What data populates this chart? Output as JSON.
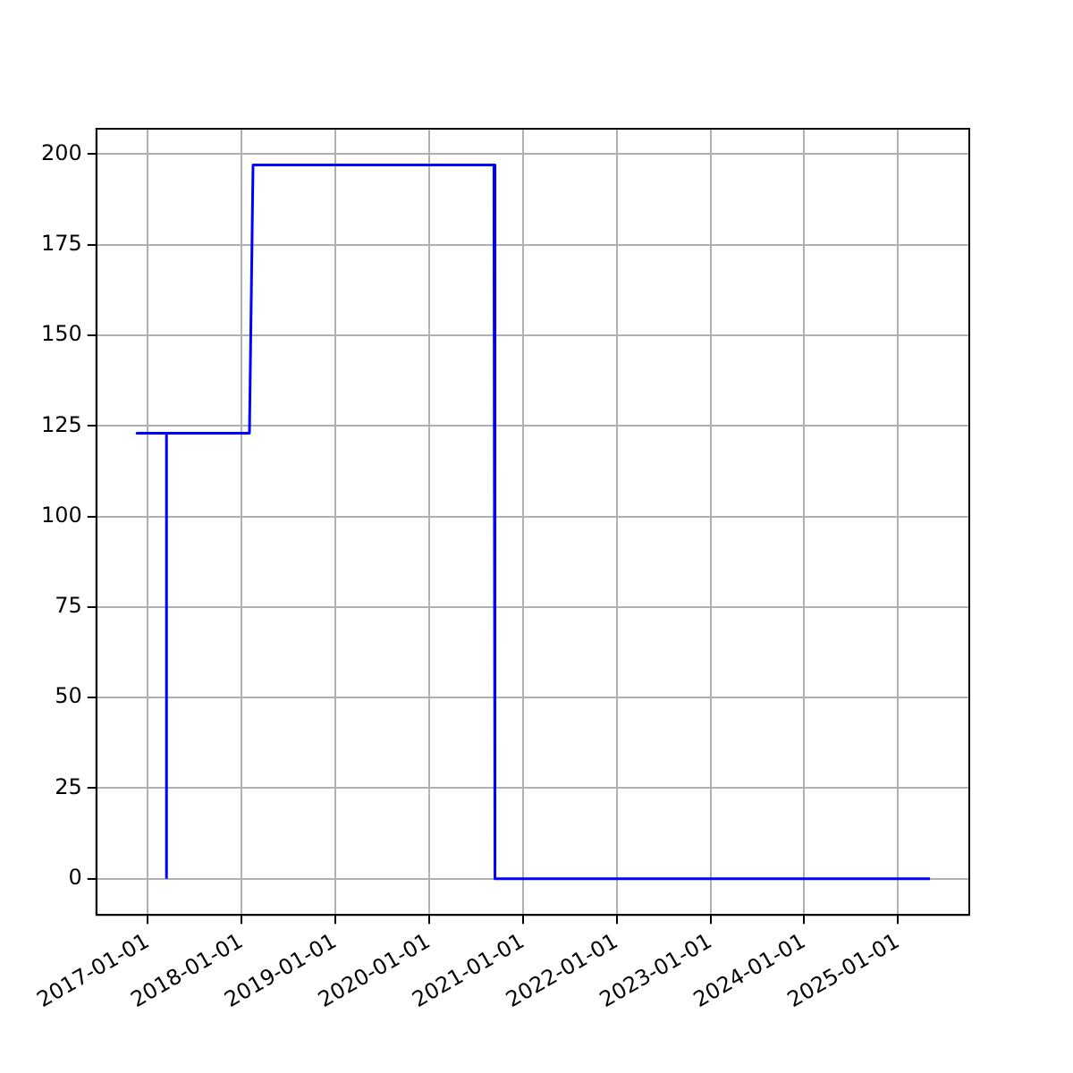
{
  "chart_data": {
    "type": "line",
    "x": [
      "2017-03-15",
      "2017-03-15",
      "2016-11-20",
      "2018-02-01",
      "2018-02-15",
      "2020-09-10",
      "2020-09-14",
      "2025-05-05"
    ],
    "series": [
      {
        "color": "#0000ff",
        "values": [
          0,
          123,
          123,
          123,
          197,
          197,
          0,
          0
        ]
      }
    ],
    "xlim": [
      "2016-06-15",
      "2025-10-05"
    ],
    "xticks": [
      "2017-01-01",
      "2018-01-01",
      "2019-01-01",
      "2020-01-01",
      "2021-01-01",
      "2022-01-01",
      "2023-01-01",
      "2024-01-01",
      "2025-01-01"
    ],
    "ylim": [
      -10,
      207
    ],
    "yticks": [
      0,
      25,
      50,
      75,
      100,
      125,
      150,
      175,
      200
    ],
    "grid": true,
    "legend": false,
    "marker": "none",
    "line_style": "solid"
  }
}
